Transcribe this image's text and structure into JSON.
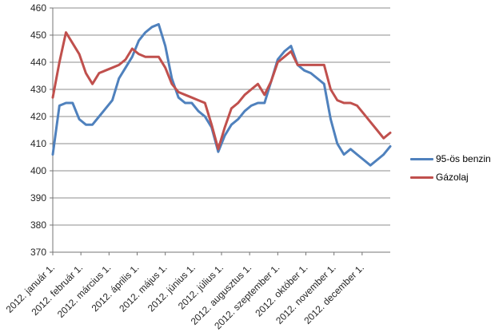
{
  "chart_data": {
    "type": "line",
    "title": "",
    "x_tick_labels": [
      "2012. január 1.",
      "2012. február 1.",
      "2012. március 1.",
      "2012. április 1.",
      "2012. május 1.",
      "2012. június 1.",
      "2012. július 1.",
      "2012. augusztus 1.",
      "2012. szeptember 1.",
      "2012. október 1.",
      "2012. november 1.",
      "2012. december 1."
    ],
    "x_unit": "weekly",
    "y_ticks": [
      370,
      380,
      390,
      400,
      410,
      420,
      430,
      440,
      450,
      460
    ],
    "ylim": [
      370,
      460
    ],
    "grid": true,
    "legend_position": "right-middle",
    "series": [
      {
        "name": "95-ös benzin",
        "color": "#4F81BD",
        "values": [
          406,
          424,
          425,
          425,
          419,
          417,
          417,
          420,
          423,
          426,
          434,
          438,
          442,
          448,
          451,
          453,
          454,
          446,
          434,
          427,
          425,
          425,
          422,
          420,
          416,
          407,
          413,
          417,
          419,
          422,
          424,
          425,
          425,
          433,
          441,
          444,
          446,
          439,
          437,
          436,
          434,
          432,
          419,
          410,
          406,
          408,
          406,
          404,
          402,
          404,
          406,
          409
        ]
      },
      {
        "name": "Gázolaj",
        "color": "#C0504D",
        "values": [
          427,
          440,
          451,
          447,
          443,
          436,
          432,
          436,
          437,
          438,
          439,
          441,
          445,
          443,
          442,
          442,
          442,
          438,
          432,
          429,
          428,
          427,
          426,
          425,
          417,
          408,
          416,
          423,
          425,
          428,
          430,
          432,
          428,
          433,
          440,
          442,
          444,
          439,
          439,
          439,
          439,
          439,
          430,
          426,
          425,
          425,
          424,
          421,
          418,
          415,
          412,
          414
        ]
      }
    ],
    "style": {
      "gridline_color": "#8E8E8E",
      "axis_color": "#747474",
      "tick_label_color": "#262626",
      "line_width": 3
    }
  }
}
